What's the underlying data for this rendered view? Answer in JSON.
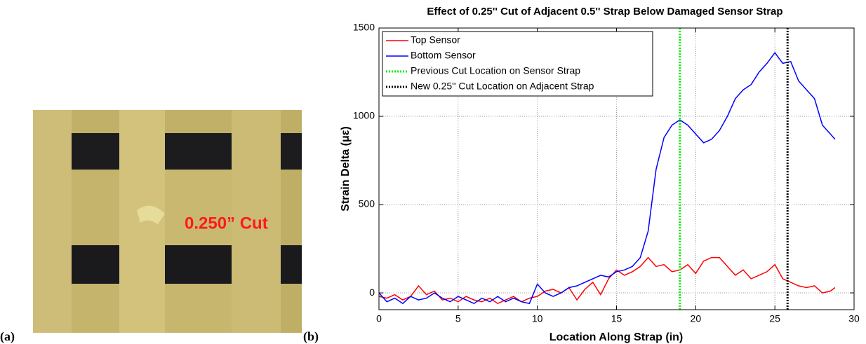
{
  "panel_labels": [
    "(a)",
    "(b)"
  ],
  "photo_label": "0.250” Cut",
  "chart_data": {
    "type": "line",
    "title": "Effect of 0.25'' Cut of Adjacent 0.5'' Strap Below Damaged Sensor Strap",
    "x_label": "Location Along Strap (in)",
    "y_label": "Strain Delta (με)",
    "xlim": [
      0,
      30
    ],
    "xticks": [
      0,
      5,
      10,
      15,
      20,
      25,
      30
    ],
    "ylim": [
      -95,
      1500
    ],
    "yticks": [
      0,
      500,
      1000,
      1500
    ],
    "grid": true,
    "legend": "upper left",
    "x": [
      0,
      0.5,
      1,
      1.5,
      2,
      2.5,
      3,
      3.5,
      4,
      4.5,
      5,
      5.5,
      6,
      6.5,
      7,
      7.5,
      8,
      8.5,
      9,
      9.5,
      10,
      10.5,
      11,
      11.5,
      12,
      12.5,
      13,
      13.5,
      14,
      14.5,
      15,
      15.5,
      16,
      16.5,
      17,
      17.5,
      18,
      18.5,
      19,
      19.5,
      20,
      20.5,
      21,
      21.5,
      22,
      22.5,
      23,
      23.5,
      24,
      24.5,
      25,
      25.5,
      26,
      26.5,
      27,
      27.5,
      28,
      28.5,
      28.8
    ],
    "series": [
      {
        "name": "Top Sensor",
        "color": "#ff0000",
        "values": [
          -20,
          -30,
          -10,
          -40,
          -20,
          40,
          -10,
          10,
          -40,
          -30,
          -50,
          -20,
          -40,
          -50,
          -30,
          -60,
          -40,
          -20,
          -50,
          -30,
          -20,
          10,
          20,
          0,
          30,
          -40,
          20,
          60,
          -10,
          80,
          130,
          100,
          120,
          150,
          200,
          150,
          160,
          120,
          130,
          160,
          110,
          180,
          200,
          200,
          150,
          100,
          130,
          80,
          100,
          120,
          160,
          80,
          60,
          40,
          30,
          40,
          0,
          10,
          30
        ]
      },
      {
        "name": "Bottom Sensor",
        "color": "#0000ff",
        "values": [
          0,
          -50,
          -30,
          -60,
          -20,
          -40,
          -30,
          0,
          -30,
          -50,
          -20,
          -40,
          -60,
          -30,
          -50,
          -20,
          -50,
          -30,
          -50,
          -60,
          50,
          0,
          -20,
          0,
          30,
          40,
          60,
          80,
          100,
          90,
          120,
          130,
          150,
          200,
          350,
          700,
          880,
          950,
          980,
          950,
          900,
          850,
          870,
          920,
          1000,
          1100,
          1150,
          1180,
          1250,
          1300,
          1360,
          1300,
          1310,
          1200,
          1150,
          1100,
          950,
          900,
          870
        ]
      }
    ],
    "reference_lines": [
      {
        "name": "Previous Cut Location on Sensor Strap",
        "color": "#00ee00",
        "x": 19
      },
      {
        "name": "New 0.25'' Cut Location on Adjacent Strap",
        "color": "#000000",
        "x": 25.8
      }
    ]
  }
}
